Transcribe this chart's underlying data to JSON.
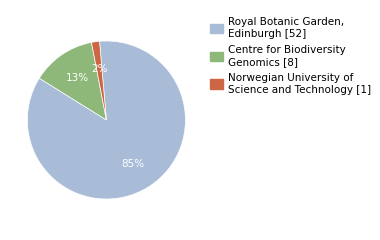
{
  "labels": [
    "Royal Botanic Garden,\nEdinburgh [52]",
    "Centre for Biodiversity\nGenomics [8]",
    "Norwegian University of\nScience and Technology [1]"
  ],
  "values": [
    52,
    8,
    1
  ],
  "colors": [
    "#a8bcd8",
    "#8db87a",
    "#cc6644"
  ],
  "background_color": "#ffffff",
  "legend_fontsize": 7.5,
  "autopct_fontsize": 7.5,
  "startangle": 95
}
